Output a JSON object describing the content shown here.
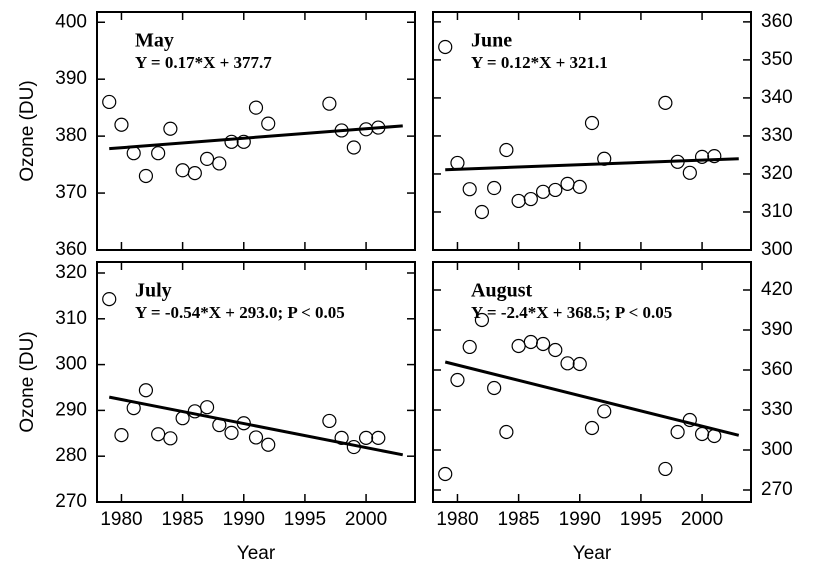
{
  "chart_data": [
    {
      "type": "scatter",
      "title": "May",
      "annotation": "Y = 0.17*X + 377.7",
      "ylabel": "Ozone (DU)",
      "yaxis_side": "left",
      "x": [
        1979,
        1980,
        1981,
        1982,
        1983,
        1984,
        1985,
        1986,
        1987,
        1988,
        1989,
        1990,
        1991,
        1992,
        1997,
        1998,
        1999,
        2000,
        2001
      ],
      "values": [
        386,
        382,
        377,
        373,
        377,
        381.3,
        374,
        373.5,
        376,
        375.2,
        379,
        379,
        385,
        382.2,
        385.7,
        381,
        378,
        381.2,
        381.5
      ],
      "fit": {
        "x": [
          1979,
          2003
        ],
        "values": [
          377.8,
          381.8
        ]
      },
      "xlim": [
        1978,
        2004
      ],
      "xticks": [
        1980,
        1985,
        1990,
        1995,
        2000
      ],
      "ylim": [
        360,
        401.8
      ],
      "yticks": [
        360,
        370,
        380,
        390,
        400
      ],
      "color": "#000000"
    },
    {
      "type": "scatter",
      "title": "June",
      "annotation": "Y = 0.12*X + 321.1",
      "yaxis_side": "right",
      "x": [
        1979,
        1980,
        1981,
        1982,
        1983,
        1984,
        1985,
        1986,
        1987,
        1988,
        1989,
        1990,
        1991,
        1992,
        1997,
        1998,
        1999,
        2000,
        2001
      ],
      "values": [
        353.4,
        322.9,
        316,
        310,
        316.3,
        326.3,
        312.9,
        313.4,
        315.3,
        315.8,
        317.4,
        316.6,
        333.4,
        324,
        338.7,
        323.2,
        320.3,
        324.5,
        324.7
      ],
      "fit": {
        "x": [
          1979,
          2003
        ],
        "values": [
          321.1,
          324
        ]
      },
      "xlim": [
        1978,
        2004
      ],
      "xticks": [
        1980,
        1985,
        1990,
        1995,
        2000
      ],
      "ylim": [
        300,
        362.6
      ],
      "yticks": [
        300,
        310,
        320,
        330,
        340,
        350,
        360
      ],
      "color": "#000000"
    },
    {
      "type": "scatter",
      "title": "July",
      "annotation": "Y = -0.54*X + 293.0; P < 0.05",
      "ylabel": "Ozone (DU)",
      "xlabel": "Year",
      "yaxis_side": "left",
      "x": [
        1979,
        1980,
        1981,
        1982,
        1983,
        1984,
        1985,
        1986,
        1987,
        1988,
        1989,
        1990,
        1991,
        1992,
        1997,
        1998,
        1999,
        2000,
        2001
      ],
      "values": [
        314.3,
        284.6,
        290.5,
        294.4,
        284.8,
        283.9,
        288.3,
        289.8,
        290.7,
        286.8,
        285.1,
        287.2,
        284.1,
        282.5,
        287.7,
        284,
        282,
        284,
        284
      ],
      "fit": {
        "x": [
          1979,
          2003
        ],
        "values": [
          292.9,
          280.3
        ]
      },
      "xlim": [
        1978,
        2004
      ],
      "xticks": [
        1980,
        1985,
        1990,
        1995,
        2000
      ],
      "ylim": [
        270,
        322.4
      ],
      "yticks": [
        270,
        280,
        290,
        300,
        310,
        320
      ],
      "color": "#000000"
    },
    {
      "type": "scatter",
      "title": "August",
      "annotation": "Y = -2.4*X + 368.5; P < 0.05",
      "xlabel": "Year",
      "yaxis_side": "right",
      "x": [
        1979,
        1980,
        1981,
        1982,
        1983,
        1984,
        1985,
        1986,
        1987,
        1988,
        1989,
        1990,
        1991,
        1992,
        1997,
        1998,
        1999,
        2000,
        2001
      ],
      "values": [
        282,
        352.5,
        377.3,
        397.5,
        346.5,
        313.5,
        378,
        381,
        379.5,
        375,
        365,
        364.5,
        316.5,
        329,
        285.8,
        313.5,
        322.5,
        312,
        310.5
      ],
      "fit": {
        "x": [
          1979,
          2003
        ],
        "values": [
          366,
          311
        ]
      },
      "xlim": [
        1978,
        2004
      ],
      "xticks": [
        1980,
        1985,
        1990,
        1995,
        2000
      ],
      "ylim": [
        261,
        441
      ],
      "yticks": [
        270,
        300,
        330,
        360,
        390,
        420
      ],
      "color": "#000000"
    }
  ]
}
